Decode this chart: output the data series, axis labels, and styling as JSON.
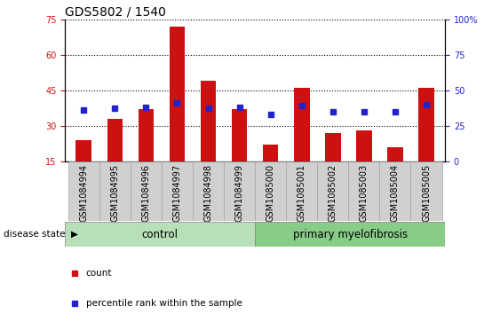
{
  "title": "GDS5802 / 1540",
  "samples": [
    "GSM1084994",
    "GSM1084995",
    "GSM1084996",
    "GSM1084997",
    "GSM1084998",
    "GSM1084999",
    "GSM1085000",
    "GSM1085001",
    "GSM1085002",
    "GSM1085003",
    "GSM1085004",
    "GSM1085005"
  ],
  "counts": [
    24,
    33,
    37,
    72,
    49,
    37,
    22,
    46,
    27,
    28,
    21,
    46
  ],
  "percentile_ranks": [
    36,
    37,
    38,
    41,
    37,
    38,
    33,
    39,
    35,
    35,
    35,
    40
  ],
  "ymin": 15,
  "ymax": 75,
  "yticks": [
    15,
    30,
    45,
    60,
    75
  ],
  "right_yticks": [
    0,
    25,
    50,
    75,
    100
  ],
  "right_ytick_labels": [
    "0",
    "25",
    "50",
    "75",
    "100%"
  ],
  "bar_color": "#cc1111",
  "square_color": "#2222cc",
  "control_label": "control",
  "disease_label": "primary myelofibrosis",
  "disease_state_label": "disease state",
  "legend_count_label": "count",
  "legend_percentile_label": "percentile rank within the sample",
  "bar_width": 0.5,
  "left_axis_color": "#cc1111",
  "right_axis_color": "#2222cc",
  "title_fontsize": 10,
  "tick_fontsize": 7,
  "label_fontsize": 8.5,
  "control_band_color": "#b8e0b8",
  "disease_band_color": "#88cc88",
  "n_control": 6,
  "n_disease": 6
}
